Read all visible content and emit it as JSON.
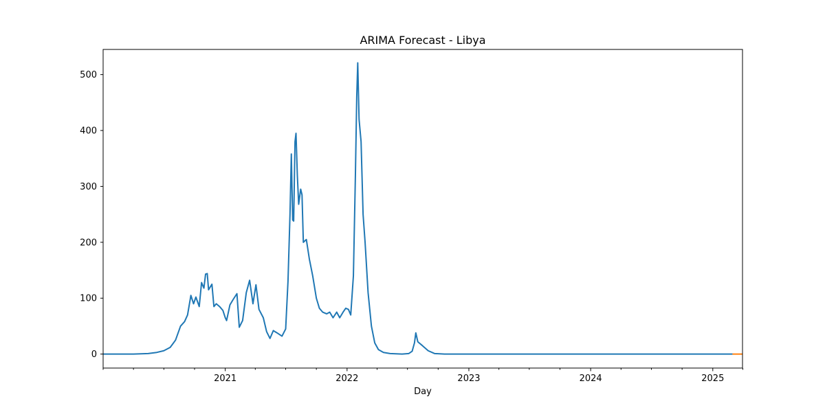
{
  "chart_data": {
    "type": "line",
    "title": "ARIMA Forecast - Libya",
    "xlabel": "Day",
    "ylabel": "",
    "x_axis": "date",
    "xlim": [
      "2020-01-01",
      "2025-03-31"
    ],
    "ylim": [
      -25,
      545
    ],
    "grid": false,
    "legend": "none",
    "y_ticks": [
      0,
      100,
      200,
      300,
      400,
      500
    ],
    "x_ticks": [
      {
        "date": "2021-01-01",
        "label": "2021"
      },
      {
        "date": "2022-01-01",
        "label": "2022"
      },
      {
        "date": "2023-01-01",
        "label": "2023"
      },
      {
        "date": "2024-01-01",
        "label": "2024"
      },
      {
        "date": "2025-01-01",
        "label": "2025"
      }
    ],
    "x_minor_ticks": [
      "2020-01-01",
      "2020-04-01",
      "2020-07-01",
      "2020-10-01",
      "2021-04-01",
      "2021-07-01",
      "2021-10-01",
      "2022-04-01",
      "2022-07-01",
      "2022-10-01",
      "2023-04-01",
      "2023-07-01",
      "2023-10-01",
      "2024-04-01",
      "2024-07-01",
      "2024-10-01",
      "2025-04-01"
    ],
    "series": [
      {
        "color": "#1f77b4",
        "points": [
          [
            "2020-01-01",
            0
          ],
          [
            "2020-04-01",
            0
          ],
          [
            "2020-05-15",
            1
          ],
          [
            "2020-06-10",
            3
          ],
          [
            "2020-07-01",
            6
          ],
          [
            "2020-07-20",
            12
          ],
          [
            "2020-08-05",
            25
          ],
          [
            "2020-08-20",
            50
          ],
          [
            "2020-09-01",
            58
          ],
          [
            "2020-09-10",
            70
          ],
          [
            "2020-09-20",
            105
          ],
          [
            "2020-09-28",
            90
          ],
          [
            "2020-10-05",
            102
          ],
          [
            "2020-10-15",
            85
          ],
          [
            "2020-10-22",
            128
          ],
          [
            "2020-10-29",
            118
          ],
          [
            "2020-11-03",
            143
          ],
          [
            "2020-11-08",
            144
          ],
          [
            "2020-11-12",
            115
          ],
          [
            "2020-11-22",
            125
          ],
          [
            "2020-11-28",
            85
          ],
          [
            "2020-12-05",
            90
          ],
          [
            "2020-12-15",
            85
          ],
          [
            "2020-12-25",
            78
          ],
          [
            "2021-01-01",
            65
          ],
          [
            "2021-01-05",
            60
          ],
          [
            "2021-01-15",
            88
          ],
          [
            "2021-01-25",
            98
          ],
          [
            "2021-02-05",
            108
          ],
          [
            "2021-02-12",
            48
          ],
          [
            "2021-02-22",
            60
          ],
          [
            "2021-03-05",
            110
          ],
          [
            "2021-03-15",
            132
          ],
          [
            "2021-03-25",
            90
          ],
          [
            "2021-04-03",
            124
          ],
          [
            "2021-04-12",
            80
          ],
          [
            "2021-04-25",
            65
          ],
          [
            "2021-05-05",
            40
          ],
          [
            "2021-05-15",
            28
          ],
          [
            "2021-05-25",
            42
          ],
          [
            "2021-06-05",
            38
          ],
          [
            "2021-06-20",
            32
          ],
          [
            "2021-07-01",
            45
          ],
          [
            "2021-07-08",
            130
          ],
          [
            "2021-07-14",
            250
          ],
          [
            "2021-07-18",
            358
          ],
          [
            "2021-07-22",
            240
          ],
          [
            "2021-07-25",
            238
          ],
          [
            "2021-07-29",
            380
          ],
          [
            "2021-08-01",
            395
          ],
          [
            "2021-08-05",
            320
          ],
          [
            "2021-08-09",
            268
          ],
          [
            "2021-08-15",
            295
          ],
          [
            "2021-08-19",
            285
          ],
          [
            "2021-08-23",
            200
          ],
          [
            "2021-09-01",
            205
          ],
          [
            "2021-09-10",
            170
          ],
          [
            "2021-09-20",
            140
          ],
          [
            "2021-10-01",
            100
          ],
          [
            "2021-10-10",
            82
          ],
          [
            "2021-10-20",
            75
          ],
          [
            "2021-11-01",
            72
          ],
          [
            "2021-11-10",
            75
          ],
          [
            "2021-11-20",
            65
          ],
          [
            "2021-12-01",
            75
          ],
          [
            "2021-12-10",
            65
          ],
          [
            "2021-12-20",
            75
          ],
          [
            "2021-12-28",
            82
          ],
          [
            "2022-01-05",
            80
          ],
          [
            "2022-01-12",
            70
          ],
          [
            "2022-01-20",
            140
          ],
          [
            "2022-01-26",
            320
          ],
          [
            "2022-01-30",
            460
          ],
          [
            "2022-02-02",
            521
          ],
          [
            "2022-02-06",
            420
          ],
          [
            "2022-02-12",
            380
          ],
          [
            "2022-02-18",
            250
          ],
          [
            "2022-02-24",
            200
          ],
          [
            "2022-03-05",
            110
          ],
          [
            "2022-03-15",
            50
          ],
          [
            "2022-03-25",
            20
          ],
          [
            "2022-04-05",
            8
          ],
          [
            "2022-04-20",
            3
          ],
          [
            "2022-05-10",
            1
          ],
          [
            "2022-06-15",
            0
          ],
          [
            "2022-07-05",
            1
          ],
          [
            "2022-07-15",
            5
          ],
          [
            "2022-07-22",
            20
          ],
          [
            "2022-07-26",
            38
          ],
          [
            "2022-08-01",
            22
          ],
          [
            "2022-08-15",
            15
          ],
          [
            "2022-09-01",
            6
          ],
          [
            "2022-09-20",
            1
          ],
          [
            "2022-10-20",
            0
          ],
          [
            "2023-01-01",
            0
          ],
          [
            "2024-01-01",
            0
          ],
          [
            "2025-03-01",
            0
          ]
        ]
      },
      {
        "color": "#ff7f0e",
        "points": [
          [
            "2025-03-01",
            0
          ],
          [
            "2025-03-31",
            0
          ]
        ]
      }
    ]
  }
}
